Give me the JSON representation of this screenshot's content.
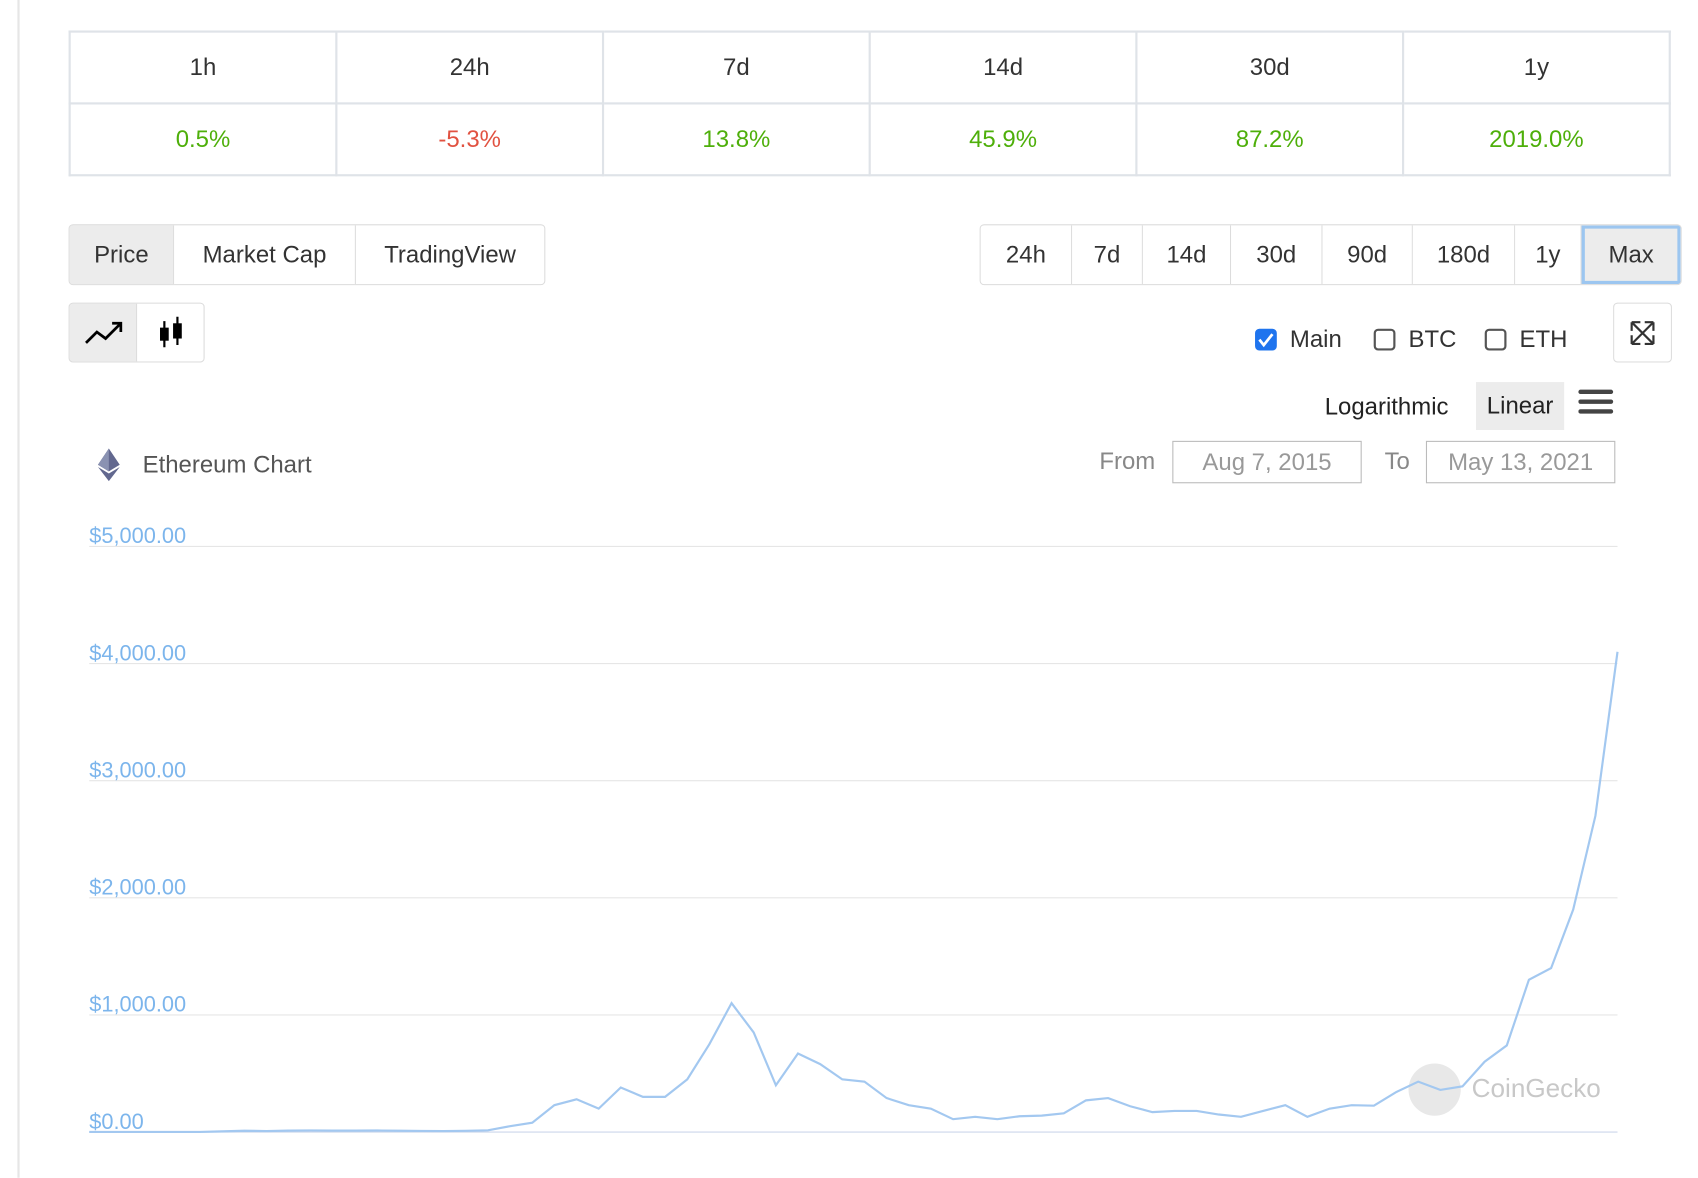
{
  "performance": {
    "headers": [
      "1h",
      "24h",
      "7d",
      "14d",
      "30d",
      "1y"
    ],
    "values": [
      "0.5%",
      "-5.3%",
      "13.8%",
      "45.9%",
      "87.2%",
      "2019.0%"
    ]
  },
  "chart_tabs": [
    "Price",
    "Market Cap",
    "TradingView"
  ],
  "ranges": [
    "24h",
    "7d",
    "14d",
    "30d",
    "90d",
    "180d",
    "1y",
    "Max"
  ],
  "compare": [
    "Main",
    "BTC",
    "ETH"
  ],
  "scales": [
    "Logarithmic",
    "Linear"
  ],
  "chart_data": {
    "type": "line",
    "title": "Ethereum Chart",
    "from_label": "From",
    "from": "Aug 7, 2015",
    "to_label": "To",
    "to": "May 13, 2021",
    "watermark": "CoinGecko",
    "color": "#a3c8f0",
    "values": [
      1,
      1,
      0.5,
      0.9,
      0.9,
      1,
      6,
      11,
      8,
      12,
      14,
      12,
      12,
      13,
      11,
      9,
      8,
      10,
      15,
      50,
      80,
      230,
      280,
      200,
      380,
      300,
      300,
      450,
      750,
      1100,
      850,
      400,
      670,
      580,
      450,
      430,
      290,
      230,
      200,
      110,
      130,
      110,
      135,
      140,
      160,
      270,
      290,
      220,
      170,
      180,
      180,
      150,
      130,
      180,
      230,
      130,
      200,
      230,
      225,
      340,
      430,
      360,
      390,
      600,
      740,
      1300,
      1400,
      1900,
      2700,
      4100
    ],
    "ylim": [
      0,
      5000
    ],
    "yticks": [
      {
        "value": 0,
        "label": "$0.00"
      },
      {
        "value": 1000,
        "label": "$1,000.00"
      },
      {
        "value": 2000,
        "label": "$2,000.00"
      },
      {
        "value": 3000,
        "label": "$3,000.00"
      },
      {
        "value": 4000,
        "label": "$4,000.00"
      },
      {
        "value": 5000,
        "label": "$5,000.00"
      }
    ],
    "grid": true
  }
}
